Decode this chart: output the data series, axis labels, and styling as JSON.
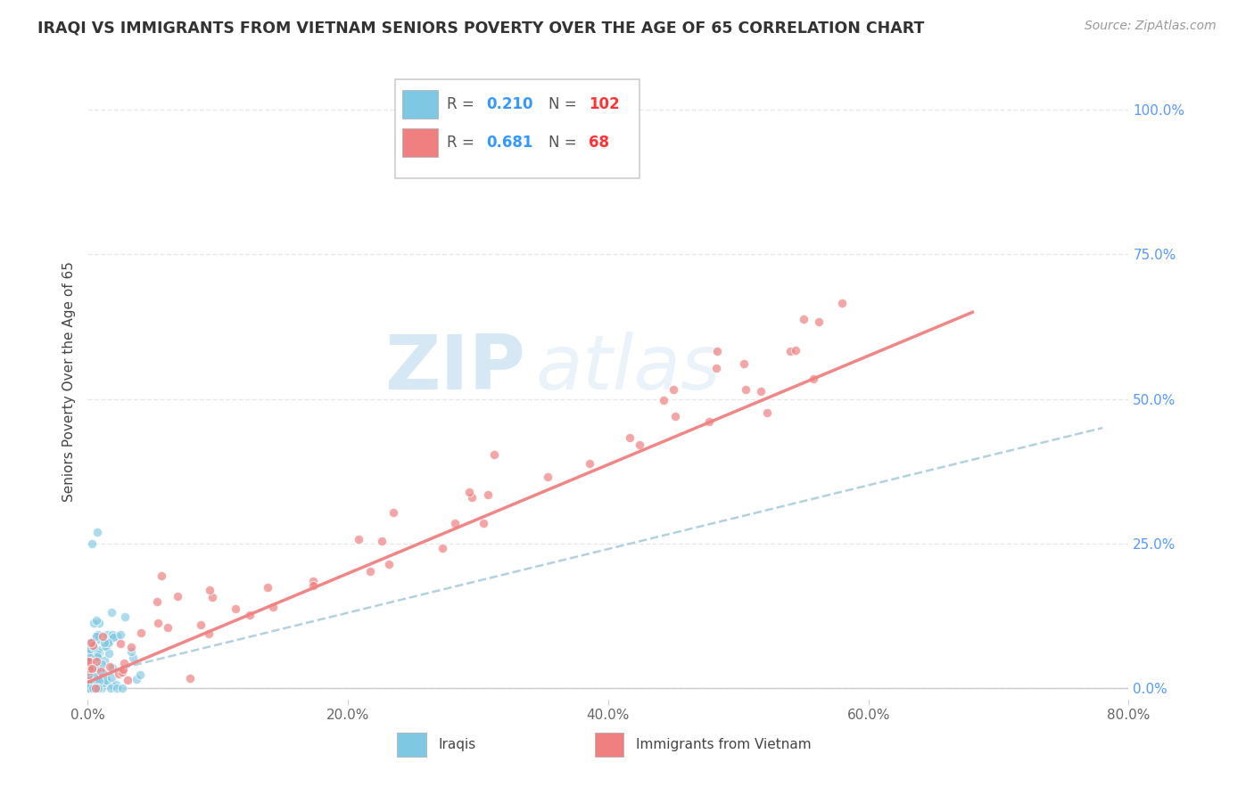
{
  "title": "IRAQI VS IMMIGRANTS FROM VIETNAM SENIORS POVERTY OVER THE AGE OF 65 CORRELATION CHART",
  "source": "Source: ZipAtlas.com",
  "ylabel": "Seniors Poverty Over the Age of 65",
  "xlim": [
    0.0,
    0.8
  ],
  "ylim": [
    -0.02,
    1.08
  ],
  "ytick_labels": [
    "0.0%",
    "25.0%",
    "50.0%",
    "75.0%",
    "100.0%"
  ],
  "ytick_vals": [
    0.0,
    0.25,
    0.5,
    0.75,
    1.0
  ],
  "xtick_labels": [
    "0.0%",
    "20.0%",
    "40.0%",
    "60.0%",
    "80.0%"
  ],
  "xtick_vals": [
    0.0,
    0.2,
    0.4,
    0.6,
    0.8
  ],
  "iraqi_color": "#7ec8e3",
  "vietnam_color": "#f08080",
  "iraqi_R": 0.21,
  "iraqi_N": 102,
  "vietnam_R": 0.681,
  "vietnam_N": 68,
  "legend_R_color": "#3399ff",
  "legend_N_color": "#ff3333",
  "ytick_color": "#5599ff",
  "watermark_zip": "ZIP",
  "watermark_atlas": "atlas",
  "background_color": "#ffffff",
  "grid_color": "#e8e8e8",
  "grid_style": "--"
}
